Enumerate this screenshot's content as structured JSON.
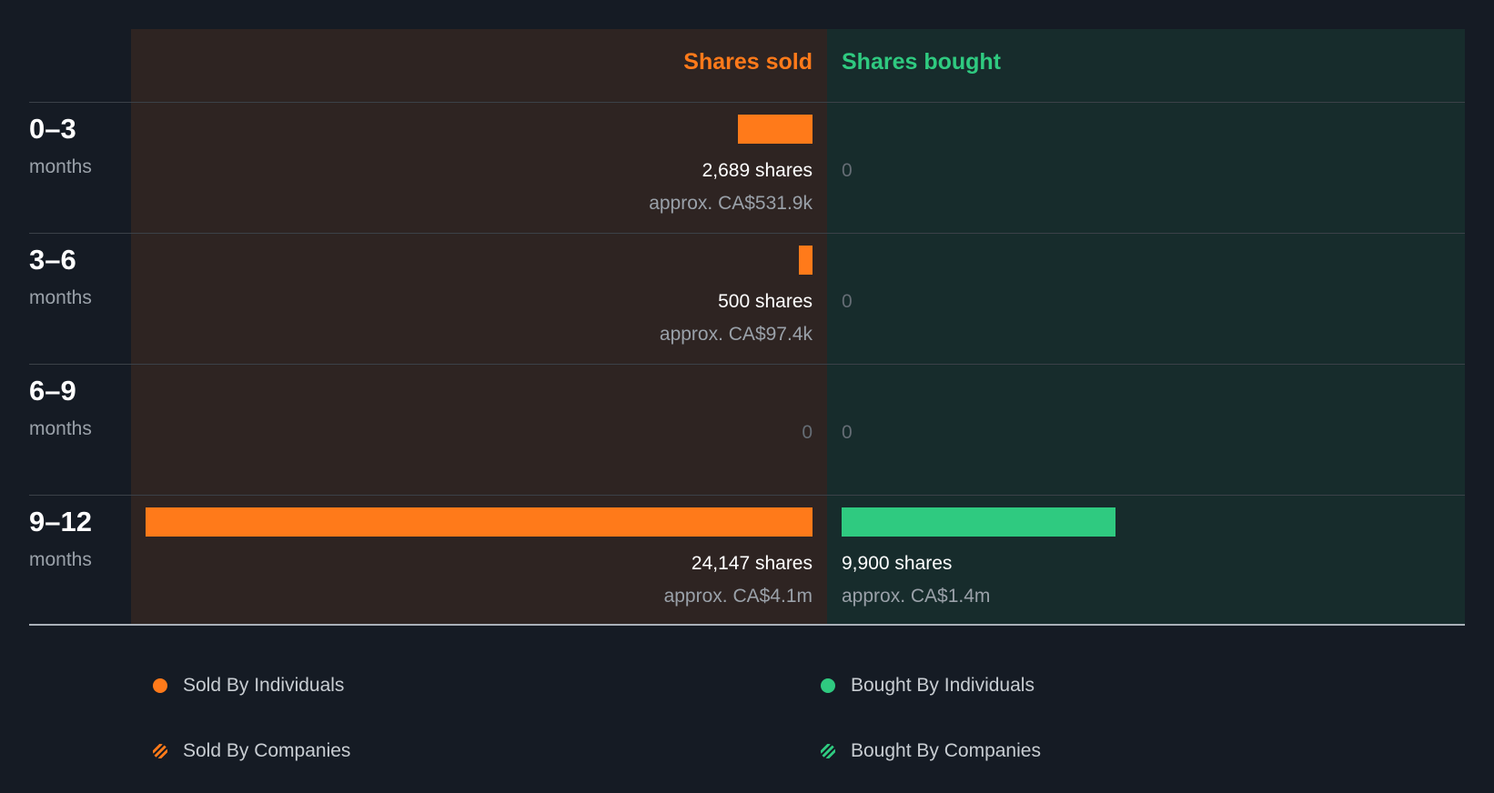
{
  "headers": {
    "sold": "Shares sold",
    "bought": "Shares bought"
  },
  "colors": {
    "sold": "#ff7a1a",
    "bought": "#2fca80"
  },
  "chart_data": {
    "type": "bar",
    "title": "",
    "categories": [
      "0–3 months",
      "3–6 months",
      "6–9 months",
      "9–12 months"
    ],
    "series": [
      {
        "name": "Shares sold",
        "values": [
          2689,
          500,
          0,
          24147
        ]
      },
      {
        "name": "Shares bought",
        "values": [
          0,
          0,
          0,
          9900
        ]
      }
    ],
    "rows": [
      {
        "period": "0–3",
        "unit": "months",
        "sold": {
          "value": 2689,
          "shares": "2,689 shares",
          "approx": "approx. CA$531.9k"
        },
        "bought": {
          "value": 0,
          "zero": "0"
        }
      },
      {
        "period": "3–6",
        "unit": "months",
        "sold": {
          "value": 500,
          "shares": "500 shares",
          "approx": "approx. CA$97.4k"
        },
        "bought": {
          "value": 0,
          "zero": "0"
        }
      },
      {
        "period": "6–9",
        "unit": "months",
        "sold": {
          "value": 0,
          "zero": "0"
        },
        "bought": {
          "value": 0,
          "zero": "0"
        }
      },
      {
        "period": "9–12",
        "unit": "months",
        "sold": {
          "value": 24147,
          "shares": "24,147 shares",
          "approx": "approx. CA$4.1m"
        },
        "bought": {
          "value": 9900,
          "shares": "9,900 shares",
          "approx": "approx. CA$1.4m"
        }
      }
    ],
    "max_value": 24147,
    "legend": [
      {
        "label": "Sold By Individuals",
        "icon": "dot",
        "color": "#ff7a1a"
      },
      {
        "label": "Bought By Individuals",
        "icon": "dot",
        "color": "#2fca80"
      },
      {
        "label": "Sold By Companies",
        "icon": "hatch",
        "color": "#ff7a1a"
      },
      {
        "label": "Bought By Companies",
        "icon": "hatch",
        "color": "#2fca80"
      }
    ]
  }
}
